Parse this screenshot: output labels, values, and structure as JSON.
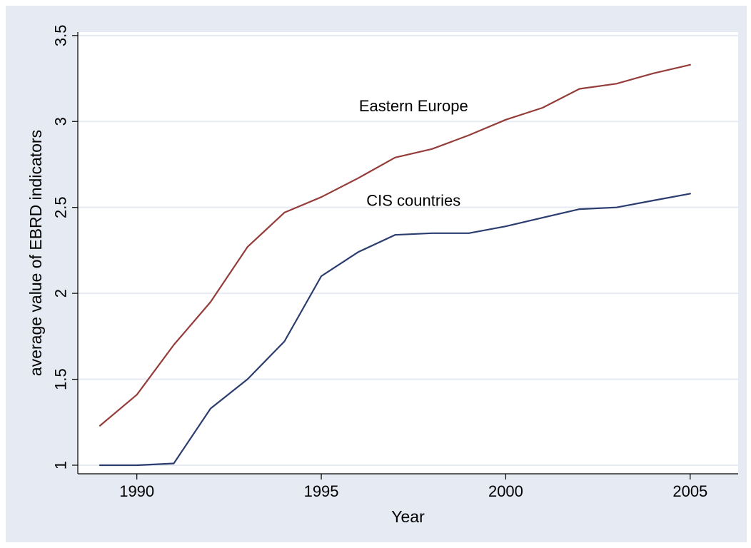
{
  "chart_data": {
    "type": "line",
    "title": "",
    "xlabel": "Year",
    "ylabel": "average value of EBRD indicators",
    "xlim": [
      1988.4,
      2006.3
    ],
    "ylim": [
      0.95,
      3.52
    ],
    "x_ticks": [
      1990,
      1995,
      2000,
      2005
    ],
    "y_ticks": [
      1,
      1.5,
      2,
      2.5,
      3,
      3.5
    ],
    "x_tick_labels": [
      "1990",
      "1995",
      "2000",
      "2005"
    ],
    "y_tick_labels": [
      "1",
      "1.5",
      "2",
      "2.5",
      "3",
      "3.5"
    ],
    "grid": true,
    "x": [
      1989,
      1990,
      1991,
      1992,
      1993,
      1994,
      1995,
      1996,
      1997,
      1998,
      1999,
      2000,
      2001,
      2002,
      2003,
      2004,
      2005
    ],
    "series": [
      {
        "name": "Eastern Europe",
        "color": "#943d3a",
        "values": [
          1.23,
          1.41,
          1.7,
          1.95,
          2.27,
          2.47,
          2.56,
          2.67,
          2.79,
          2.84,
          2.92,
          3.01,
          3.08,
          3.19,
          3.22,
          3.28,
          3.33
        ]
      },
      {
        "name": "CIS countries",
        "color": "#2b3d6e",
        "values": [
          1.0,
          1.0,
          1.01,
          1.33,
          1.5,
          1.72,
          2.1,
          2.24,
          2.34,
          2.35,
          2.35,
          2.39,
          2.44,
          2.49,
          2.5,
          2.54,
          2.58
        ]
      }
    ],
    "annotations": [
      {
        "text": "Eastern Europe",
        "series": 0,
        "x": 1997.5,
        "y": 3.09
      },
      {
        "text": "CIS countries",
        "series": 1,
        "x": 1997.5,
        "y": 2.54
      }
    ],
    "background_color": "#e6eaf3",
    "plot_background_color": "#ffffff",
    "grid_color": "#e6eaf3"
  }
}
